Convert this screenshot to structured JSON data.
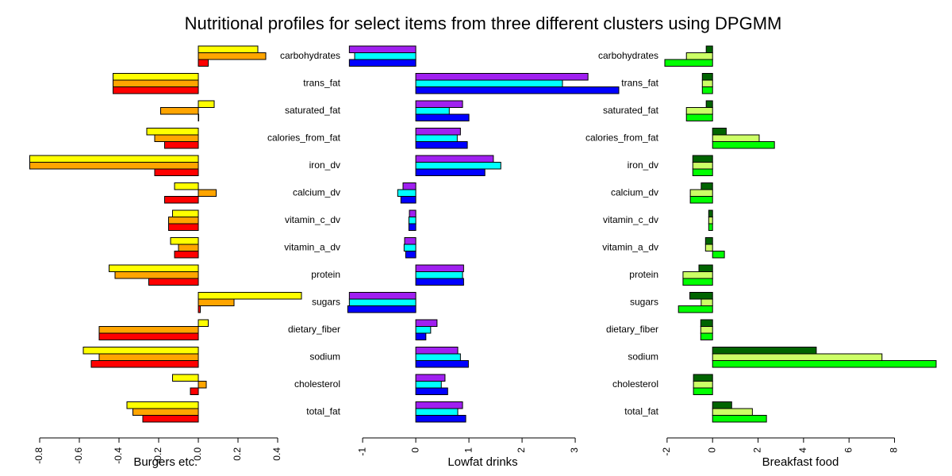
{
  "title": "Nutritional profiles for select items from three different clusters using DPGMM",
  "chart_data": [
    {
      "type": "bar",
      "horizontal": true,
      "xlabel": "Burgers etc.",
      "xlim": [
        -0.87,
        0.54
      ],
      "xticks": [
        -0.8,
        -0.6,
        -0.4,
        -0.2,
        {
          "value": 0,
          "label": "0.0"
        },
        0.2,
        0.4
      ],
      "series": [
        {
          "color": "#ffff00",
          "values": [
            0.3,
            -0.43,
            0.08,
            -0.26,
            -0.85,
            -0.12,
            -0.13,
            -0.14,
            -0.45,
            0.52,
            0.05,
            -0.58,
            -0.13,
            -0.36
          ]
        },
        {
          "color": "#ffa500",
          "values": [
            0.34,
            -0.43,
            -0.19,
            -0.22,
            -0.85,
            0.09,
            -0.15,
            -0.1,
            -0.42,
            0.18,
            -0.5,
            -0.5,
            0.04,
            -0.33
          ]
        },
        {
          "color": "#ff0000",
          "values": [
            0.05,
            -0.43,
            0,
            -0.17,
            -0.22,
            -0.17,
            -0.15,
            -0.12,
            -0.25,
            0.01,
            -0.5,
            -0.54,
            -0.04,
            -0.28
          ]
        }
      ]
    },
    {
      "type": "bar",
      "horizontal": true,
      "xlabel": "Lowfat drinks",
      "xlim": [
        -1.3,
        3.82
      ],
      "xticks": [
        -1,
        0,
        1,
        2,
        3
      ],
      "categories": [
        "carbohydrates",
        "trans_fat",
        "saturated_fat",
        "calories_from_fat",
        "iron_dv",
        "calcium_dv",
        "vitamin_c_dv",
        "vitamin_a_dv",
        "protein",
        "sugars",
        "dietary_fiber",
        "sodium",
        "cholesterol",
        "total_fat"
      ],
      "series": [
        {
          "color": "#a020f0",
          "values": [
            -1.25,
            3.24,
            0.88,
            0.84,
            1.46,
            -0.24,
            -0.12,
            -0.21,
            0.9,
            -1.25,
            0.4,
            0.79,
            0.55,
            0.88
          ]
        },
        {
          "color": "#00ffff",
          "values": [
            -1.15,
            2.76,
            0.63,
            0.78,
            1.6,
            -0.34,
            -0.13,
            -0.22,
            0.88,
            -1.25,
            0.28,
            0.84,
            0.48,
            0.79
          ]
        },
        {
          "color": "#0000ff",
          "values": [
            -1.25,
            3.82,
            1.0,
            0.97,
            1.3,
            -0.28,
            -0.13,
            -0.19,
            0.9,
            -1.28,
            0.19,
            0.99,
            0.6,
            0.94
          ]
        }
      ]
    },
    {
      "type": "bar",
      "horizontal": true,
      "xlabel": "Breakfast food",
      "xlim": [
        -2.1,
        9.83
      ],
      "xticks": [
        -2,
        0,
        2,
        4,
        6,
        8
      ],
      "categories": [
        "carbohydrates",
        "trans_fat",
        "saturated_fat",
        "calories_from_fat",
        "iron_dv",
        "calcium_dv",
        "vitamin_c_dv",
        "vitamin_a_dv",
        "protein",
        "sugars",
        "dietary_fiber",
        "sodium",
        "cholesterol",
        "total_fat"
      ],
      "series": [
        {
          "color": "#006400",
          "values": [
            -0.28,
            -0.45,
            -0.28,
            0.6,
            -0.87,
            -0.5,
            -0.17,
            -0.31,
            -0.6,
            -1.0,
            -0.52,
            4.56,
            -0.84,
            0.84
          ]
        },
        {
          "color": "#ccff66",
          "values": [
            -1.15,
            -0.45,
            -1.15,
            2.05,
            -0.87,
            -0.98,
            -0.17,
            -0.31,
            -1.3,
            -0.5,
            -0.52,
            7.45,
            -0.84,
            1.75
          ]
        },
        {
          "color": "#00ff00",
          "values": [
            -2.1,
            -0.45,
            -1.15,
            2.72,
            -0.87,
            -0.98,
            -0.17,
            0.52,
            -1.3,
            -1.5,
            -0.52,
            9.83,
            -0.84,
            2.37
          ]
        }
      ]
    }
  ]
}
